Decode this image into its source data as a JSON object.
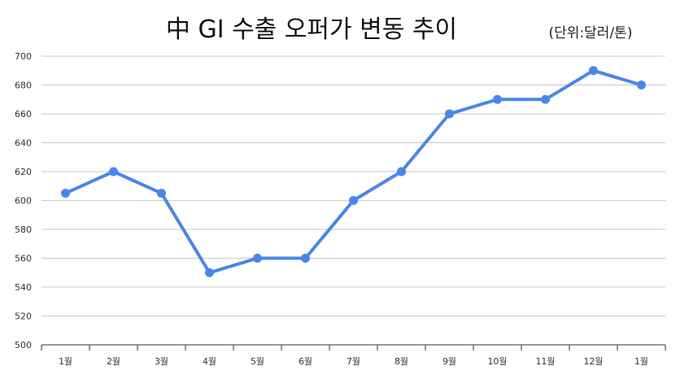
{
  "chart_data": {
    "type": "line",
    "title": "中 GI 수출 오퍼가 변동 추이",
    "unit_note": "(단위:달러/톤)",
    "categories": [
      "1월",
      "2월",
      "3월",
      "4월",
      "5월",
      "6월",
      "7월",
      "8월",
      "9월",
      "10월",
      "11월",
      "12월",
      "1월"
    ],
    "series": [
      {
        "values": [
          605,
          620,
          605,
          550,
          560,
          560,
          600,
          620,
          660,
          670,
          670,
          690,
          680
        ]
      }
    ],
    "ylim": [
      500,
      700
    ],
    "yticks": [
      500,
      520,
      540,
      560,
      580,
      600,
      620,
      640,
      660,
      680,
      700
    ],
    "grid": true,
    "legend": "none"
  },
  "colors": {
    "line": "#4a86e8",
    "grid": "#c9c9c9",
    "axis": "#333333"
  }
}
